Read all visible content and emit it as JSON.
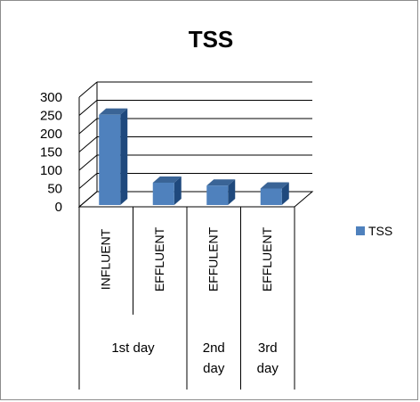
{
  "chart_data": {
    "type": "bar",
    "title": "TSS",
    "categories": [
      "INFLUENT",
      "EFFLUENT",
      "EFFULENT",
      "EFFLUENT"
    ],
    "groups": [
      {
        "label": [
          "1st  day"
        ],
        "span": [
          0,
          1
        ]
      },
      {
        "label": [
          "2nd",
          "day"
        ],
        "span": [
          2,
          2
        ]
      },
      {
        "label": [
          "3rd",
          "day"
        ],
        "span": [
          3,
          3
        ]
      }
    ],
    "series": [
      {
        "name": "TSS",
        "values": [
          252,
          66,
          58,
          50
        ]
      }
    ],
    "ylim": [
      0,
      300
    ],
    "yticks": [
      0,
      50,
      100,
      150,
      200,
      250,
      300
    ],
    "grid": true,
    "legend_position": "right",
    "colors": {
      "bar_front": "#4f81bd",
      "bar_side": "#1f497d",
      "bar_top": "#3a6496",
      "grid": "#000000",
      "floor": "#000000"
    }
  }
}
